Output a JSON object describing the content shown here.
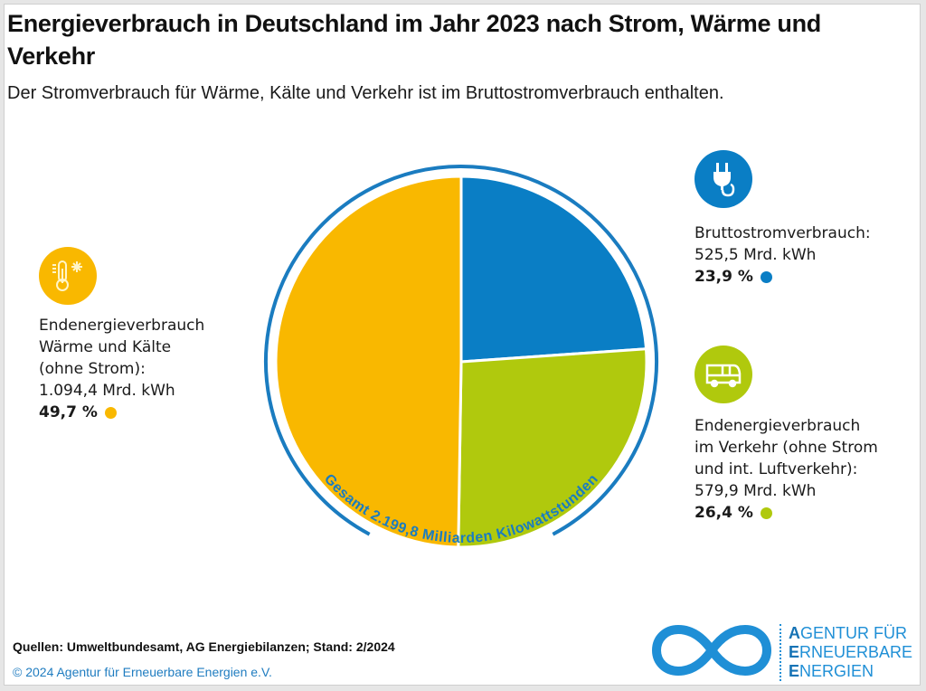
{
  "header": {
    "title": "Energieverbrauch in Deutschland im Jahr 2023 nach Strom, Wärme und Verkehr",
    "subtitle": "Der Stromverbrauch für Wärme, Kälte und Verkehr ist im Bruttostromverbrauch enthalten."
  },
  "colors": {
    "heat": "#f9b800",
    "electricity": "#0a7ec5",
    "transport": "#b0c90d",
    "ring": "#1a7cc0"
  },
  "legend": {
    "heat": {
      "icon": "thermometer-snowflake-icon",
      "lines": [
        "Endenergieverbrauch",
        "Wärme und Kälte",
        "(ohne Strom):",
        "1.094,4 Mrd. kWh"
      ],
      "percent": "49,7 %"
    },
    "electricity": {
      "icon": "plug-icon",
      "lines": [
        "Bruttostromverbrauch:",
        "525,5 Mrd. kWh"
      ],
      "percent": "23,9 %"
    },
    "transport": {
      "icon": "bus-icon",
      "lines": [
        "Endenergieverbrauch",
        "im Verkehr (ohne Strom",
        "und int. Luftverkehr):",
        "579,9 Mrd. kWh"
      ],
      "percent": "26,4 %"
    }
  },
  "chart_data": {
    "type": "pie",
    "title": "Energieverbrauch in Deutschland im Jahr 2023 nach Strom, Wärme und Verkehr",
    "total_label": "Gesamt 2.199,8 Milliarden Kilowattstunden",
    "total": 2199.8,
    "unit": "Mrd. kWh",
    "start": "top, clockwise",
    "slices": [
      {
        "name": "Bruttostromverbrauch",
        "value": 525.5,
        "percent": 23.9,
        "color": "#0a7ec5"
      },
      {
        "name": "Endenergieverbrauch im Verkehr (ohne Strom und int. Luftverkehr)",
        "value": 579.9,
        "percent": 26.4,
        "color": "#b0c90d"
      },
      {
        "name": "Endenergieverbrauch Wärme und Kälte (ohne Strom)",
        "value": 1094.4,
        "percent": 49.7,
        "color": "#f9b800"
      }
    ]
  },
  "footer": {
    "source": "Quellen: Umweltbundesamt, AG Energiebilanzen; Stand: 2/2024",
    "copyright": "© 2024 Agentur für Erneuerbare Energien e.V.",
    "logo_lines": [
      {
        "initial": "A",
        "rest": "GENTUR FÜR"
      },
      {
        "initial": "E",
        "rest": "RNEUERBARE"
      },
      {
        "initial": "E",
        "rest": "NERGIEN"
      }
    ]
  }
}
